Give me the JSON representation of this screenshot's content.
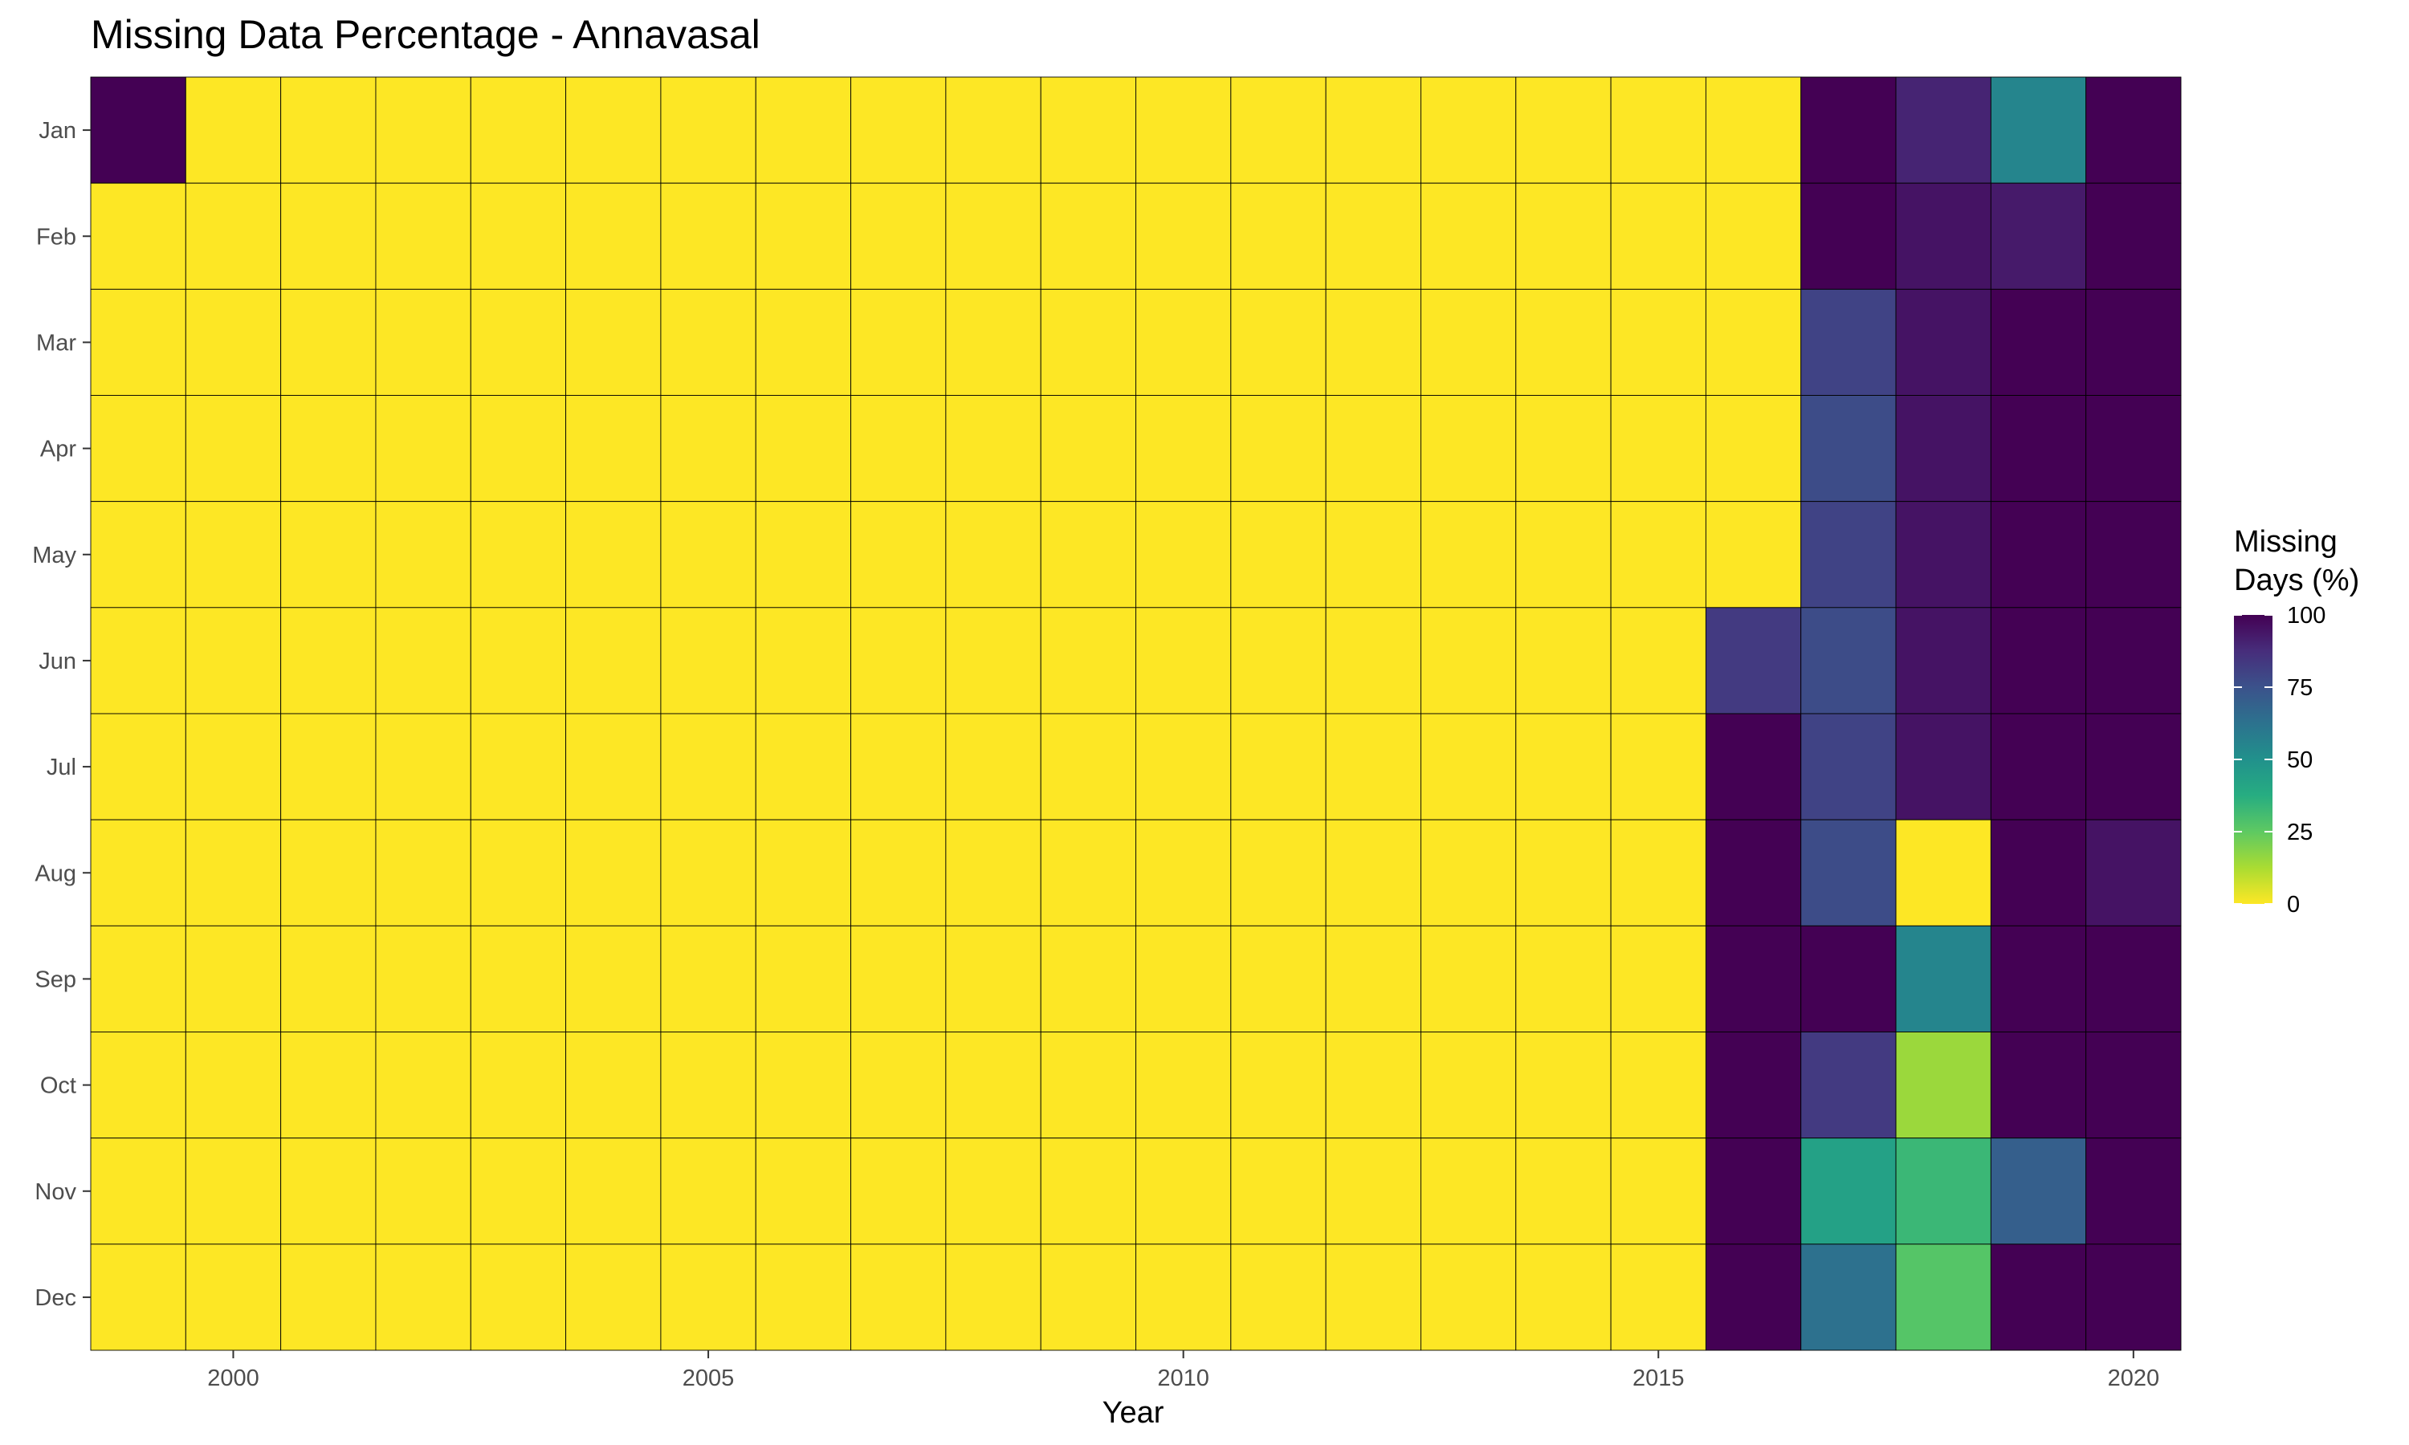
{
  "chart_data": {
    "type": "heatmap",
    "title": "Missing Data Percentage - Annavasal",
    "xlabel": "Year",
    "ylabel": "",
    "x": [
      1999,
      2000,
      2001,
      2002,
      2003,
      2004,
      2005,
      2006,
      2007,
      2008,
      2009,
      2010,
      2011,
      2012,
      2013,
      2014,
      2015,
      2016,
      2017,
      2018,
      2019,
      2020
    ],
    "x_ticks": [
      2000,
      2005,
      2010,
      2015,
      2020
    ],
    "y": [
      "Jan",
      "Feb",
      "Mar",
      "Apr",
      "May",
      "Jun",
      "Jul",
      "Aug",
      "Sep",
      "Oct",
      "Nov",
      "Dec"
    ],
    "values": [
      [
        100,
        0,
        0,
        0,
        0,
        0,
        0,
        0,
        0,
        0,
        0,
        0,
        0,
        0,
        0,
        0,
        0,
        0,
        100,
        90,
        55,
        100
      ],
      [
        0,
        0,
        0,
        0,
        0,
        0,
        0,
        0,
        0,
        0,
        0,
        0,
        0,
        0,
        0,
        0,
        0,
        0,
        100,
        95,
        93,
        100
      ],
      [
        0,
        0,
        0,
        0,
        0,
        0,
        0,
        0,
        0,
        0,
        0,
        0,
        0,
        0,
        0,
        0,
        0,
        0,
        80,
        95,
        100,
        100
      ],
      [
        0,
        0,
        0,
        0,
        0,
        0,
        0,
        0,
        0,
        0,
        0,
        0,
        0,
        0,
        0,
        0,
        0,
        0,
        77,
        95,
        100,
        100
      ],
      [
        0,
        0,
        0,
        0,
        0,
        0,
        0,
        0,
        0,
        0,
        0,
        0,
        0,
        0,
        0,
        0,
        0,
        0,
        80,
        95,
        100,
        100
      ],
      [
        0,
        0,
        0,
        0,
        0,
        0,
        0,
        0,
        0,
        0,
        0,
        0,
        0,
        0,
        0,
        0,
        0,
        83,
        77,
        95,
        100,
        100
      ],
      [
        0,
        0,
        0,
        0,
        0,
        0,
        0,
        0,
        0,
        0,
        0,
        0,
        0,
        0,
        0,
        0,
        0,
        100,
        80,
        95,
        100,
        100
      ],
      [
        0,
        0,
        0,
        0,
        0,
        0,
        0,
        0,
        0,
        0,
        0,
        0,
        0,
        0,
        0,
        0,
        0,
        100,
        77,
        0,
        100,
        95
      ],
      [
        0,
        0,
        0,
        0,
        0,
        0,
        0,
        0,
        0,
        0,
        0,
        0,
        0,
        0,
        0,
        0,
        0,
        100,
        100,
        55,
        100,
        100
      ],
      [
        0,
        0,
        0,
        0,
        0,
        0,
        0,
        0,
        0,
        0,
        0,
        0,
        0,
        0,
        0,
        0,
        0,
        100,
        83,
        15,
        100,
        100
      ],
      [
        0,
        0,
        0,
        0,
        0,
        0,
        0,
        0,
        0,
        0,
        0,
        0,
        0,
        0,
        0,
        0,
        0,
        100,
        43,
        33,
        70,
        100
      ],
      [
        0,
        0,
        0,
        0,
        0,
        0,
        0,
        0,
        0,
        0,
        0,
        0,
        0,
        0,
        0,
        0,
        0,
        100,
        63,
        27,
        100,
        100
      ]
    ],
    "zlim": [
      0,
      100
    ],
    "colorscale": "viridis-reversed",
    "legend": {
      "title_lines": [
        "Missing",
        "Days (%)"
      ],
      "ticks": [
        100,
        75,
        50,
        25,
        0
      ],
      "position": "right"
    },
    "grid": false
  }
}
